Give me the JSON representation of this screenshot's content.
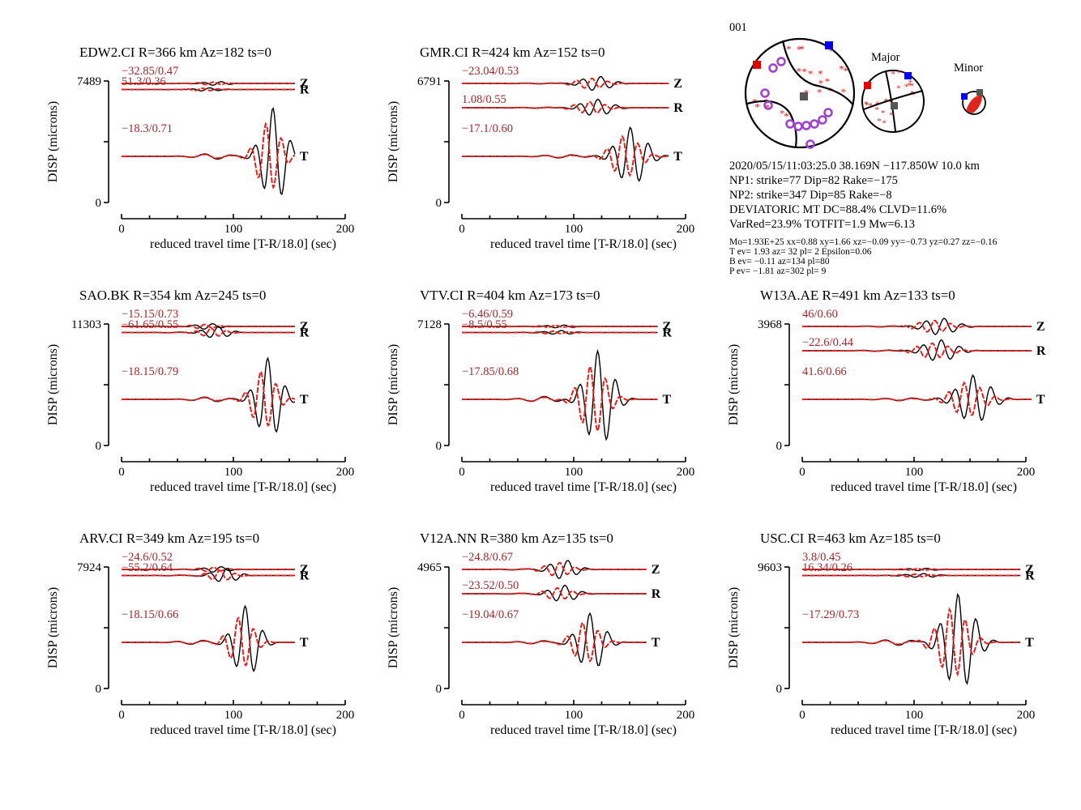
{
  "event_id": "001",
  "mechanism": {
    "labels": {
      "major": "Major",
      "minor": "Minor"
    },
    "info_lines": [
      "2020/05/15/11:03:25.0 38.169N −117.850W 10.0 km",
      "NP1: strike=77 Dip=82 Rake=−175",
      "NP2: strike=347 Dip=85 Rake=−8",
      "DEVIATORIC MT DC=88.4% CLVD=11.6%",
      "VarRed=23.9% TOTFIT=1.9 Mw=6.13"
    ],
    "detail_lines": [
      "Mo=1.93E+25 xx=0.88 xy=1.66 xz=−0.09 yy=−0.73 yz=0.27 zz=−0.16",
      "T ev=  1.93 az= 32 pl= 2 Epsilon=0.06",
      "B ev= −0.11 az=134 pl=80",
      "P ev= −1.81 az=302 pl= 9"
    ],
    "colors": {
      "beachball_stars": "#e0231e",
      "p_axis_marker": "#e00000",
      "t_axis_marker": "#0000ee",
      "b_axis_marker": "#555555",
      "stations": "#a040d0"
    }
  },
  "axis_labels": {
    "ylabel": "DISP (microns)",
    "xlabel": "reduced travel time [T-R/18.0] (sec)"
  },
  "chart_data": {
    "type": "line",
    "xlim": [
      0,
      200
    ],
    "xticks": [
      0,
      100,
      200
    ],
    "colors": {
      "observed": "#000000",
      "synthetic": "#e0231e",
      "fit_label": "#a0282c"
    },
    "panels": [
      {
        "title": "EDW2.CI R=366 km Az=182 ts=0",
        "ymax": "7489",
        "ymin": "0",
        "duration": 155,
        "traces": [
          {
            "component": "Z",
            "fit": "−32.85/0.47",
            "amp": 0.08,
            "peak": 0.55
          },
          {
            "component": "R",
            "fit": "51.3/0.36",
            "amp": 0.07,
            "peak": 0.5
          },
          {
            "component": "T",
            "fit": "−18.3/0.71",
            "amp": 1.0,
            "peak": 0.88
          }
        ]
      },
      {
        "title": "GMR.CI R=424 km Az=152 ts=0",
        "ymax": "6791",
        "ymin": "0",
        "duration": 185,
        "traces": [
          {
            "component": "Z",
            "fit": "−23.04/0.53",
            "amp": 0.3,
            "peak": 0.65
          },
          {
            "component": "R",
            "fit": "1.08/0.55",
            "amp": 0.35,
            "peak": 0.65
          },
          {
            "component": "T",
            "fit": "−17.1/0.60",
            "amp": 0.6,
            "peak": 0.82
          }
        ]
      },
      {
        "title": "SAO.BK R=354 km Az=245 ts=0",
        "ymax": "11303",
        "ymin": "0",
        "duration": 155,
        "traces": [
          {
            "component": "Z",
            "fit": "−15.15/0.73",
            "amp": 0.12,
            "peak": 0.5
          },
          {
            "component": "R",
            "fit": "−61.65/0.55",
            "amp": 0.25,
            "peak": 0.55
          },
          {
            "component": "T",
            "fit": "−18.15/0.79",
            "amp": 0.85,
            "peak": 0.85
          }
        ]
      },
      {
        "title": "VTV.CI R=404 km Az=173 ts=0",
        "ymax": "7128",
        "ymin": "0",
        "duration": 175,
        "traces": [
          {
            "component": "Z",
            "fit": "−6.46/0.59",
            "amp": 0.06,
            "peak": 0.5
          },
          {
            "component": "R",
            "fit": "−8.5/0.55",
            "amp": 0.08,
            "peak": 0.5
          },
          {
            "component": "T",
            "fit": "−17.85/0.68",
            "amp": 1.0,
            "peak": 0.7
          }
        ]
      },
      {
        "title": "W13A.AE R=491 km Az=133 ts=0",
        "ymax": "3968",
        "ymin": "0",
        "duration": 205,
        "traces": [
          {
            "component": "Z",
            "fit": "46/0.60",
            "amp": 0.35,
            "peak": 0.6
          },
          {
            "component": "R",
            "fit": "−22.6/0.44",
            "amp": 0.45,
            "peak": 0.6
          },
          {
            "component": "T",
            "fit": "41.6/0.66",
            "amp": 0.5,
            "peak": 0.75
          }
        ]
      },
      {
        "title": "ARV.CI R=349 km Az=195 ts=0",
        "ymax": "7924",
        "ymin": "0",
        "duration": 155,
        "traces": [
          {
            "component": "Z",
            "fit": "−24.6/0.52",
            "amp": 0.12,
            "peak": 0.55
          },
          {
            "component": "R",
            "fit": "−55.2/0.64",
            "amp": 0.3,
            "peak": 0.6
          },
          {
            "component": "T",
            "fit": "−18.15/0.66",
            "amp": 0.75,
            "peak": 0.72
          }
        ]
      },
      {
        "title": "V12A.NN R=380 km Az=135 ts=0",
        "ymax": "4965",
        "ymin": "0",
        "duration": 165,
        "traces": [
          {
            "component": "Z",
            "fit": "−24.8/0.67",
            "amp": 0.4,
            "peak": 0.55
          },
          {
            "component": "R",
            "fit": "−23.52/0.50",
            "amp": 0.35,
            "peak": 0.55
          },
          {
            "component": "T",
            "fit": "−19.04/0.67",
            "amp": 0.6,
            "peak": 0.7
          }
        ]
      },
      {
        "title": "USC.CI R=463 km Az=185 ts=0",
        "ymax": "9603",
        "ymin": "0",
        "duration": 195,
        "traces": [
          {
            "component": "Z",
            "fit": "3.8/0.45",
            "amp": 0.05,
            "peak": 0.55
          },
          {
            "component": "R",
            "fit": "16.34/0.26",
            "amp": 0.08,
            "peak": 0.55
          },
          {
            "component": "T",
            "fit": "−17.29/0.73",
            "amp": 1.0,
            "peak": 0.72
          }
        ]
      }
    ]
  }
}
